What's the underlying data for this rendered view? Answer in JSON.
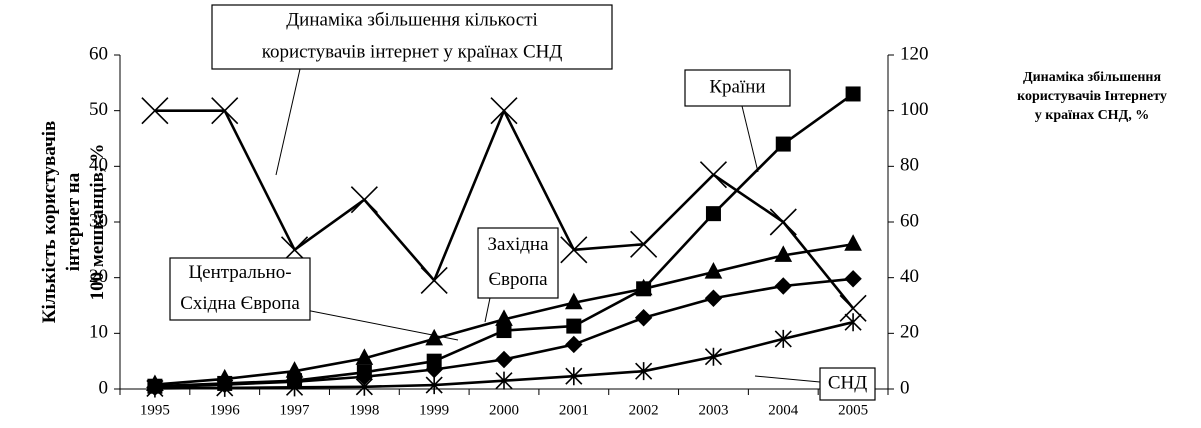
{
  "chart_data": {
    "type": "line",
    "categories": [
      "1995",
      "1996",
      "1997",
      "1998",
      "1999",
      "2000",
      "2001",
      "2002",
      "2003",
      "2004",
      "2005"
    ],
    "series": [
      {
        "color": "#000000",
        "marker": "square",
        "values": [
          0.5,
          1,
          1.5,
          3,
          5,
          10.5,
          11.3,
          18,
          31.5,
          44,
          53
        ]
      },
      {
        "color": "#000000",
        "marker": "triangle",
        "values": [
          0.8,
          1.8,
          3.2,
          5.5,
          9,
          12.5,
          15.5,
          18,
          21,
          24,
          26
        ]
      },
      {
        "color": "#000000",
        "marker": "diamond",
        "values": [
          0.3,
          0.8,
          1.3,
          2.2,
          3.5,
          5.3,
          8,
          12.8,
          16.3,
          18.5,
          19.8
        ]
      },
      {
        "color": "#000000",
        "marker": "asterisk",
        "values": [
          0.1,
          0.2,
          0.3,
          0.4,
          0.7,
          1.5,
          2.3,
          3.2,
          5.8,
          9,
          12
        ]
      },
      {
        "color": "#000000",
        "marker": "cross",
        "axis": "y2",
        "values": [
          100,
          100,
          50,
          68,
          39,
          100,
          50,
          52,
          77,
          60,
          29
        ]
      }
    ],
    "ylim": [
      0,
      60
    ],
    "yticks": [
      0,
      10,
      20,
      30,
      40,
      50,
      60
    ],
    "y2lim": [
      0,
      120
    ],
    "y2ticks": [
      0,
      20,
      40,
      60,
      80,
      100,
      120
    ],
    "y_label": [
      "Кількість користувачів",
      "інтернет на",
      "100 мешканців, %"
    ],
    "y2_label": [
      "Динаміка збільшення",
      "користувачів Інтернету",
      "у країнах СНД, %"
    ],
    "annotations": [
      {
        "lines": [
          "Динаміка збільшення кількості",
          "користувачів інтернет у країнах СНД"
        ]
      },
      {
        "lines": [
          "Країни"
        ]
      },
      {
        "lines": [
          "Західна",
          "Європа"
        ]
      },
      {
        "lines": [
          "Центрально-",
          "Східна Європа"
        ]
      },
      {
        "lines": [
          "СНД"
        ]
      }
    ]
  }
}
